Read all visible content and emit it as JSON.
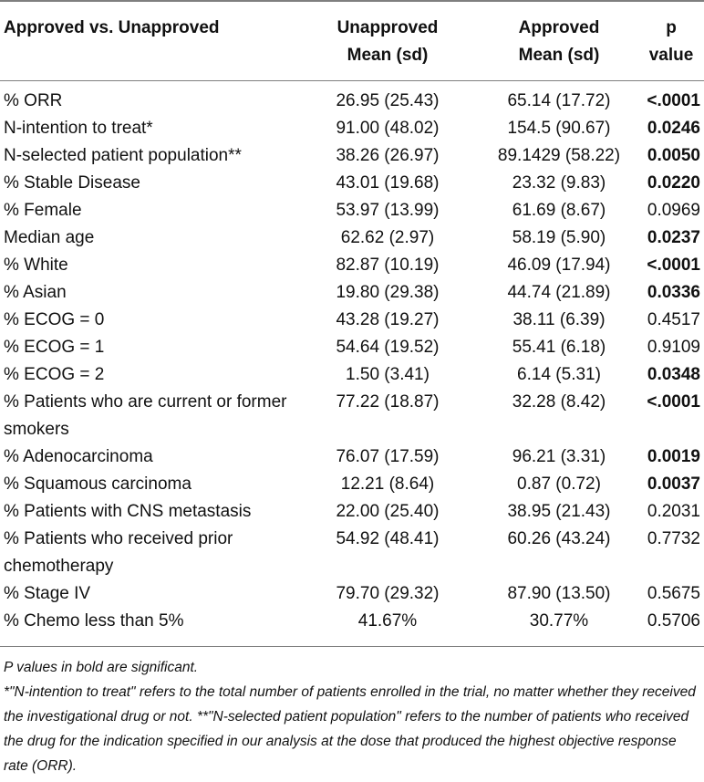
{
  "table": {
    "headers": {
      "col0": "Approved vs. Unapproved",
      "col1_line1": "Unapproved",
      "col1_line2": "Mean (sd)",
      "col2_line1": "Approved",
      "col2_line2": "Mean (sd)",
      "col3_line1": "p",
      "col3_line2": "value"
    },
    "rows": [
      {
        "label": "% ORR",
        "unapproved": "26.95 (25.43)",
        "approved": "65.14 (17.72)",
        "p": "<.0001",
        "significant": true
      },
      {
        "label": "N-intention to treat*",
        "unapproved": "91.00 (48.02)",
        "approved": "154.5 (90.67)",
        "p": "0.0246",
        "significant": true
      },
      {
        "label": "N-selected patient population**",
        "unapproved": "38.26 (26.97)",
        "approved": "89.1429 (58.22)",
        "p": "0.0050",
        "significant": true
      },
      {
        "label": "% Stable Disease",
        "unapproved": "43.01 (19.68)",
        "approved": "23.32 (9.83)",
        "p": "0.0220",
        "significant": true
      },
      {
        "label": "% Female",
        "unapproved": "53.97 (13.99)",
        "approved": "61.69 (8.67)",
        "p": "0.0969",
        "significant": false
      },
      {
        "label": "Median age",
        "unapproved": "62.62 (2.97)",
        "approved": "58.19 (5.90)",
        "p": "0.0237",
        "significant": true
      },
      {
        "label": "% White",
        "unapproved": "82.87 (10.19)",
        "approved": "46.09 (17.94)",
        "p": "<.0001",
        "significant": true
      },
      {
        "label": "% Asian",
        "unapproved": "19.80 (29.38)",
        "approved": "44.74 (21.89)",
        "p": "0.0336",
        "significant": true
      },
      {
        "label": "% ECOG = 0",
        "unapproved": "43.28 (19.27)",
        "approved": "38.11 (6.39)",
        "p": "0.4517",
        "significant": false
      },
      {
        "label": "% ECOG = 1",
        "unapproved": "54.64 (19.52)",
        "approved": "55.41 (6.18)",
        "p": "0.9109",
        "significant": false
      },
      {
        "label": "% ECOG = 2",
        "unapproved": "1.50 (3.41)",
        "approved": "6.14 (5.31)",
        "p": "0.0348",
        "significant": true
      },
      {
        "label": "% Patients who are current or former smokers",
        "unapproved": "77.22 (18.87)",
        "approved": "32.28 (8.42)",
        "p": "<.0001",
        "significant": true,
        "tall": true
      },
      {
        "label": "% Adenocarcinoma",
        "unapproved": "76.07 (17.59)",
        "approved": "96.21 (3.31)",
        "p": "0.0019",
        "significant": true
      },
      {
        "label": "% Squamous carcinoma",
        "unapproved": "12.21 (8.64)",
        "approved": "0.87 (0.72)",
        "p": "0.0037",
        "significant": true
      },
      {
        "label": "% Patients with CNS metastasis",
        "unapproved": "22.00 (25.40)",
        "approved": "38.95 (21.43)",
        "p": "0.2031",
        "significant": false
      },
      {
        "label": "% Patients who received prior chemotherapy",
        "unapproved": "54.92 (48.41)",
        "approved": "60.26 (43.24)",
        "p": "0.7732",
        "significant": false,
        "tall": true
      },
      {
        "label": "% Stage IV",
        "unapproved": "79.70 (29.32)",
        "approved": "87.90 (13.50)",
        "p": "0.5675",
        "significant": false
      },
      {
        "label": "% Chemo less than 5%",
        "unapproved": "41.67%",
        "approved": "30.77%",
        "p": "0.5706",
        "significant": false
      }
    ]
  },
  "footnotes": {
    "note1": "P values in bold are significant.",
    "note2": "*\"N-intention to treat\" refers to the total number of patients enrolled in the trial, no matter whether they received the investigational drug or not. **\"N-selected patient population\" refers to the number of patients who received the drug for the indication specified in our analysis at the dose that produced the highest objective response rate (ORR)."
  }
}
